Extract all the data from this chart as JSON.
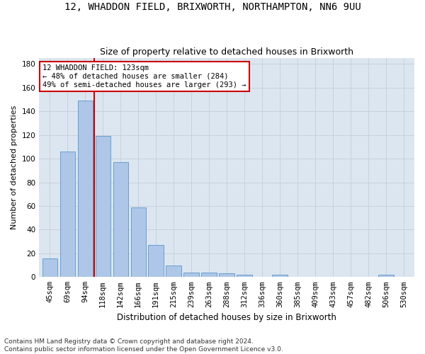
{
  "title": "12, WHADDON FIELD, BRIXWORTH, NORTHAMPTON, NN6 9UU",
  "subtitle": "Size of property relative to detached houses in Brixworth",
  "xlabel": "Distribution of detached houses by size in Brixworth",
  "ylabel": "Number of detached properties",
  "categories": [
    "45sqm",
    "69sqm",
    "94sqm",
    "118sqm",
    "142sqm",
    "166sqm",
    "191sqm",
    "215sqm",
    "239sqm",
    "263sqm",
    "288sqm",
    "312sqm",
    "336sqm",
    "360sqm",
    "385sqm",
    "409sqm",
    "433sqm",
    "457sqm",
    "482sqm",
    "506sqm",
    "530sqm"
  ],
  "bar_heights": [
    16,
    106,
    149,
    119,
    97,
    59,
    27,
    10,
    4,
    4,
    3,
    2,
    0,
    2,
    0,
    0,
    0,
    0,
    0,
    2,
    0
  ],
  "bar_color": "#aec6e8",
  "bar_edge_color": "#6a9fd0",
  "vline_color": "#cc0000",
  "vline_x_index": 3,
  "annotation_text": "12 WHADDON FIELD: 123sqm\n← 48% of detached houses are smaller (284)\n49% of semi-detached houses are larger (293) →",
  "annotation_box_facecolor": "#ffffff",
  "annotation_box_edgecolor": "#cc0000",
  "ylim": [
    0,
    185
  ],
  "yticks": [
    0,
    20,
    40,
    60,
    80,
    100,
    120,
    140,
    160,
    180
  ],
  "grid_color": "#c8d0dc",
  "plot_bg_color": "#dce6f0",
  "fig_bg_color": "#ffffff",
  "footnote": "Contains HM Land Registry data © Crown copyright and database right 2024.\nContains public sector information licensed under the Open Government Licence v3.0.",
  "title_fontsize": 10,
  "subtitle_fontsize": 9,
  "xlabel_fontsize": 8.5,
  "ylabel_fontsize": 8,
  "tick_fontsize": 7.5,
  "annot_fontsize": 7.5,
  "footnote_fontsize": 6.5
}
